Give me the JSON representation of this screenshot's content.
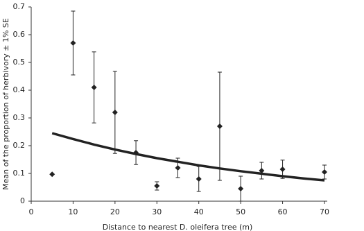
{
  "chart_data": {
    "type": "scatter",
    "x_label": "Distance to nearest D. oleifera tree (m)",
    "y_label": "Mean of the proportion of herbivory  ± 1% SE",
    "x": [
      5,
      10,
      15,
      20,
      25,
      30,
      35,
      40,
      45,
      50,
      55,
      60,
      70
    ],
    "values": [
      0.097,
      0.57,
      0.41,
      0.32,
      0.175,
      0.055,
      0.12,
      0.08,
      0.27,
      0.045,
      0.11,
      0.115,
      0.105
    ],
    "errors": [
      null,
      0.115,
      0.128,
      0.148,
      0.043,
      0.015,
      0.035,
      0.045,
      0.195,
      0.045,
      0.03,
      0.033,
      0.025
    ],
    "color": "#222222",
    "trend": {
      "x": [
        5,
        10,
        15,
        20,
        25,
        30,
        35,
        40,
        45,
        50,
        55,
        60,
        65,
        70
      ],
      "values": [
        0.245,
        0.224,
        0.204,
        0.186,
        0.17,
        0.155,
        0.142,
        0.129,
        0.118,
        0.108,
        0.099,
        0.09,
        0.082,
        0.075
      ],
      "color": "#222222"
    },
    "xlim": [
      0,
      70
    ],
    "ylim": [
      0,
      0.7
    ],
    "xticks": [
      0,
      10,
      20,
      30,
      40,
      50,
      60,
      70
    ],
    "yticks": [
      0,
      0.1,
      0.2,
      0.3,
      0.4,
      0.5,
      0.6,
      0.7
    ]
  }
}
